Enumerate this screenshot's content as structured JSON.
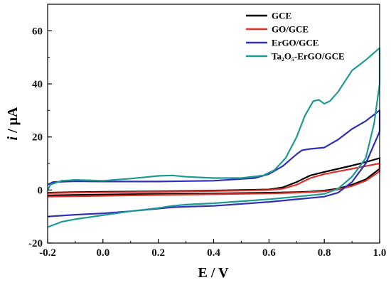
{
  "chart_data": {
    "type": "line",
    "title": "",
    "xlabel": "E / V",
    "ylabel_main": "i",
    "ylabel_unit": " / μA",
    "xlim": [
      -0.2,
      1.0
    ],
    "ylim": [
      -20,
      70
    ],
    "xticks": [
      -0.2,
      0.0,
      0.2,
      0.4,
      0.6,
      0.8,
      1.0
    ],
    "xtick_labels": [
      "-0.2",
      "0.0",
      "0.2",
      "0.4",
      "0.6",
      "0.8",
      "1.0"
    ],
    "yticks": [
      -20,
      0,
      20,
      40,
      60
    ],
    "ytick_labels": [
      "-20",
      "0",
      "20",
      "40",
      "60"
    ],
    "grid": false,
    "legend_position": "top-right",
    "series": [
      {
        "name": "GCE",
        "color": "#000000",
        "x": [
          -0.2,
          -0.1,
          0.0,
          0.2,
          0.4,
          0.6,
          0.65,
          0.7,
          0.75,
          0.8,
          0.85,
          0.9,
          0.95,
          1.0,
          1.0,
          0.95,
          0.9,
          0.85,
          0.8,
          0.75,
          0.7,
          0.6,
          0.4,
          0.2,
          0.0,
          -0.2
        ],
        "y": [
          -1,
          -0.8,
          -0.7,
          -0.5,
          -0.2,
          0.2,
          1,
          3,
          5.5,
          6.8,
          8,
          9.2,
          10.5,
          12,
          8,
          4,
          2,
          0.5,
          -0.2,
          -0.6,
          -0.8,
          -1,
          -1.3,
          -1.5,
          -1.7,
          -2
        ]
      },
      {
        "name": "GO/GCE",
        "color": "#e0302a",
        "x": [
          -0.2,
          -0.1,
          0.0,
          0.2,
          0.4,
          0.6,
          0.65,
          0.7,
          0.75,
          0.8,
          0.85,
          0.9,
          0.95,
          1.0,
          1.0,
          0.95,
          0.9,
          0.85,
          0.8,
          0.75,
          0.7,
          0.6,
          0.4,
          0.2,
          0.0,
          -0.2
        ],
        "y": [
          -1.2,
          -1,
          -0.9,
          -0.7,
          -0.4,
          0,
          0.5,
          2,
          4.5,
          6,
          7,
          8,
          9,
          10,
          7,
          3.5,
          1.5,
          0.2,
          -0.5,
          -0.8,
          -1,
          -1.3,
          -1.6,
          -1.9,
          -2.2,
          -2.5
        ]
      },
      {
        "name": "ErGO/GCE",
        "color": "#2f2fb8",
        "x": [
          -0.2,
          -0.18,
          -0.1,
          0.0,
          0.2,
          0.4,
          0.55,
          0.6,
          0.65,
          0.7,
          0.72,
          0.75,
          0.8,
          0.85,
          0.9,
          0.95,
          1.0,
          1.0,
          0.95,
          0.9,
          0.85,
          0.8,
          0.7,
          0.6,
          0.4,
          0.3,
          0.25,
          0.2,
          0.1,
          0.0,
          -0.1,
          -0.2
        ],
        "y": [
          2,
          3,
          3.3,
          3.2,
          3.2,
          3.5,
          4.5,
          6,
          9,
          13.5,
          15,
          15.5,
          16,
          19,
          23,
          26,
          30,
          22,
          10,
          3,
          -1,
          -2.5,
          -3.5,
          -4.5,
          -6,
          -6.3,
          -6.5,
          -7,
          -8,
          -8.8,
          -9.3,
          -10
        ]
      },
      {
        "name": "Ta₂O₅-ErGO/GCE",
        "color": "#1e9a93",
        "x": [
          -0.2,
          -0.19,
          -0.15,
          -0.1,
          0.0,
          0.1,
          0.2,
          0.25,
          0.3,
          0.4,
          0.5,
          0.58,
          0.62,
          0.66,
          0.7,
          0.73,
          0.76,
          0.78,
          0.8,
          0.82,
          0.85,
          0.9,
          0.95,
          1.0,
          1.0,
          0.98,
          0.95,
          0.9,
          0.85,
          0.8,
          0.7,
          0.6,
          0.4,
          0.3,
          0.25,
          0.2,
          0.1,
          0.0,
          -0.1,
          -0.15,
          -0.2
        ],
        "y": [
          0,
          2,
          3.5,
          3.8,
          3.5,
          4.3,
          5.3,
          5.5,
          5,
          4.5,
          4.5,
          5.5,
          7.5,
          12,
          20,
          28,
          33.5,
          34,
          32.5,
          33.5,
          37,
          45,
          49,
          53.5,
          40,
          25,
          12,
          5,
          0.5,
          -1.5,
          -2.5,
          -3.5,
          -5,
          -5.5,
          -6,
          -6.8,
          -8,
          -9.5,
          -11,
          -12,
          -14
        ]
      }
    ]
  }
}
